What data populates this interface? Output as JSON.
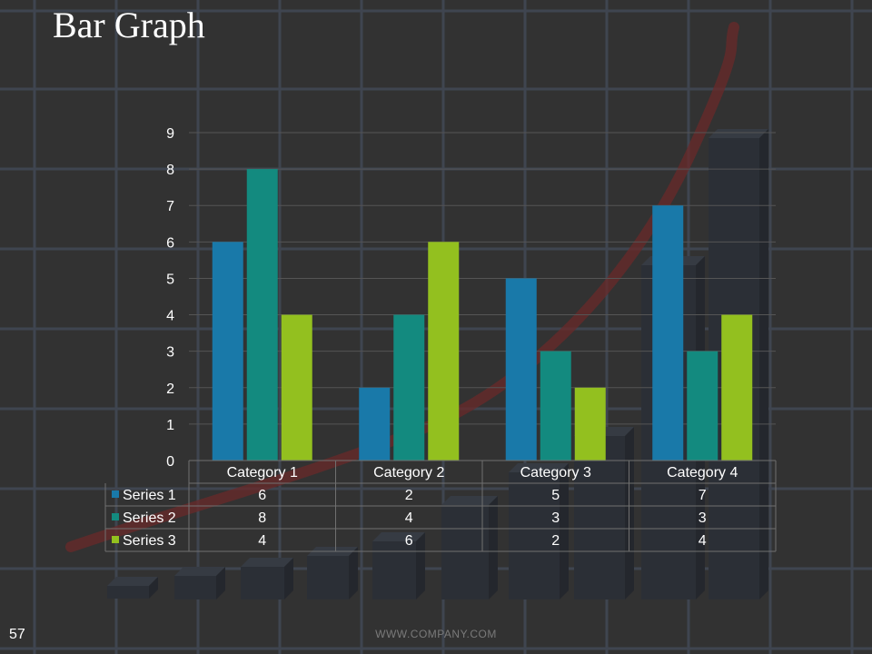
{
  "slide": {
    "title": "Bar Graph",
    "page_number": "57",
    "footer": "WWW.COMPANY.COM"
  },
  "chart_data": {
    "type": "bar",
    "categories": [
      "Category 1",
      "Category 2",
      "Category 3",
      "Category 4"
    ],
    "series": [
      {
        "name": "Series 1",
        "values": [
          6,
          2,
          5,
          7
        ],
        "color": "#1979a9"
      },
      {
        "name": "Series 2",
        "values": [
          8,
          4,
          3,
          3
        ],
        "color": "#138a7f"
      },
      {
        "name": "Series 3",
        "values": [
          4,
          6,
          2,
          4
        ],
        "color": "#93c01f"
      }
    ],
    "ylim": [
      0,
      9
    ],
    "yticks": [
      0,
      1,
      2,
      3,
      4,
      5,
      6,
      7,
      8,
      9
    ],
    "grid": true,
    "data_table": true,
    "colors": {
      "background": "#323232",
      "text": "#ffffff",
      "gridline": "#555555"
    }
  }
}
